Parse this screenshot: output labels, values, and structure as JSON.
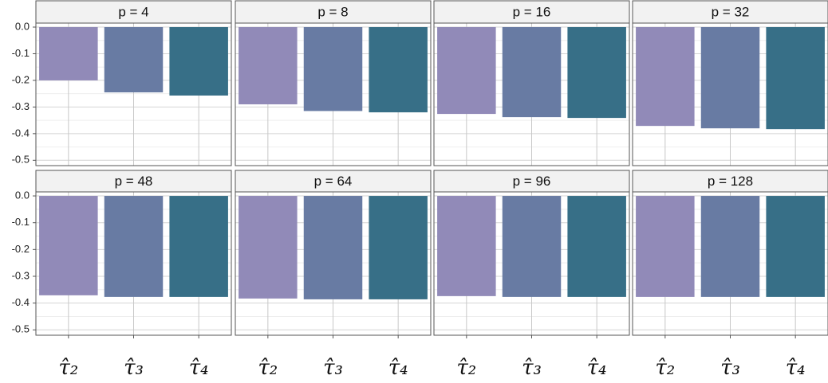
{
  "chart_data": [
    {
      "type": "bar",
      "title": "p = 4",
      "values": [
        -0.2,
        -0.245,
        -0.257
      ],
      "colors": [
        "#918ab8",
        "#687ba3",
        "#376f87"
      ],
      "ylim": [
        -0.52,
        0.015
      ],
      "yticks": [
        {
          "value": 0,
          "label": "0.0"
        },
        -0.1,
        -0.2,
        -0.3,
        -0.4,
        -0.5
      ],
      "grid": true
    },
    {
      "type": "bar",
      "title": "p = 8",
      "values": [
        -0.29,
        -0.315,
        -0.32
      ],
      "colors": [
        "#918ab8",
        "#687ba3",
        "#376f87"
      ],
      "ylim": [
        -0.52,
        0.015
      ],
      "yticks": [
        {
          "value": 0,
          "label": "0.0"
        },
        -0.1,
        -0.2,
        -0.3,
        -0.4,
        -0.5
      ],
      "grid": true
    },
    {
      "type": "bar",
      "title": "p = 16",
      "values": [
        -0.326,
        -0.338,
        -0.341
      ],
      "colors": [
        "#918ab8",
        "#687ba3",
        "#376f87"
      ],
      "ylim": [
        -0.52,
        0.015
      ],
      "yticks": [
        {
          "value": 0,
          "label": "0.0"
        },
        -0.1,
        -0.2,
        -0.3,
        -0.4,
        -0.5
      ],
      "grid": true
    },
    {
      "type": "bar",
      "title": "p = 32",
      "values": [
        -0.371,
        -0.38,
        -0.383
      ],
      "colors": [
        "#918ab8",
        "#687ba3",
        "#376f87"
      ],
      "ylim": [
        -0.52,
        0.015
      ],
      "yticks": [
        {
          "value": 0,
          "label": "0.0"
        },
        -0.1,
        -0.2,
        -0.3,
        -0.4,
        -0.5
      ],
      "grid": true
    },
    {
      "type": "bar",
      "title": "p = 48",
      "categories": [
        "τ̂₂",
        "τ̂₃",
        "τ̂₄"
      ],
      "values": [
        -0.371,
        -0.377,
        -0.377
      ],
      "colors": [
        "#918ab8",
        "#687ba3",
        "#376f87"
      ],
      "ylim": [
        -0.52,
        0.015
      ],
      "yticks": [
        {
          "value": 0,
          "label": "0.0"
        },
        -0.1,
        -0.2,
        -0.3,
        -0.4,
        -0.5
      ],
      "grid": true
    },
    {
      "type": "bar",
      "title": "p = 64",
      "categories": [
        "τ̂₂",
        "τ̂₃",
        "τ̂₄"
      ],
      "values": [
        -0.383,
        -0.386,
        -0.386
      ],
      "colors": [
        "#918ab8",
        "#687ba3",
        "#376f87"
      ],
      "ylim": [
        -0.52,
        0.015
      ],
      "yticks": [
        {
          "value": 0,
          "label": "0.0"
        },
        -0.1,
        -0.2,
        -0.3,
        -0.4,
        -0.5
      ],
      "grid": true
    },
    {
      "type": "bar",
      "title": "p = 96",
      "categories": [
        "τ̂₂",
        "τ̂₃",
        "τ̂₄"
      ],
      "values": [
        -0.374,
        -0.377,
        -0.377
      ],
      "colors": [
        "#918ab8",
        "#687ba3",
        "#376f87"
      ],
      "ylim": [
        -0.52,
        0.015
      ],
      "yticks": [
        {
          "value": 0,
          "label": "0.0"
        },
        -0.1,
        -0.2,
        -0.3,
        -0.4,
        -0.5
      ],
      "grid": true
    },
    {
      "type": "bar",
      "title": "p = 128",
      "categories": [
        "τ̂₂",
        "τ̂₃",
        "τ̂₄"
      ],
      "values": [
        -0.377,
        -0.377,
        -0.377
      ],
      "colors": [
        "#918ab8",
        "#687ba3",
        "#376f87"
      ],
      "ylim": [
        -0.52,
        0.015
      ],
      "yticks": [
        {
          "value": 0,
          "label": "0.0"
        },
        -0.1,
        -0.2,
        -0.3,
        -0.4,
        -0.5
      ],
      "grid": true
    }
  ]
}
